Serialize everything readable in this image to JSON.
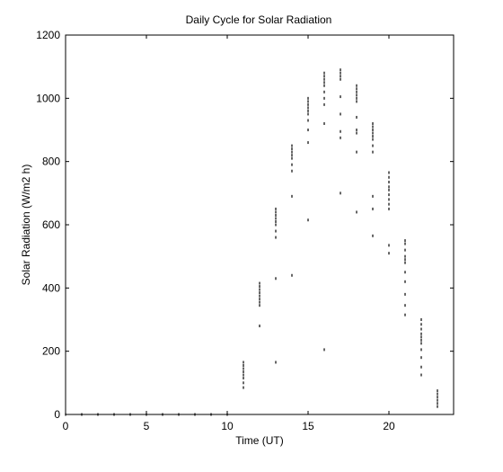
{
  "chart_data": {
    "type": "scatter",
    "title": "Daily Cycle for Solar Radiation",
    "xlabel": "Time (UT)",
    "ylabel": "Solar Radiation (W/m2 h)",
    "xlim": [
      0,
      24
    ],
    "ylim": [
      0,
      1200
    ],
    "xticks": [
      0,
      5,
      10,
      15,
      20
    ],
    "yticks": [
      0,
      200,
      400,
      600,
      800,
      1000,
      1200
    ],
    "grid": false,
    "legend": "none",
    "marker_color": "#000000",
    "series": [
      {
        "points": [
          [
            0,
            0
          ],
          [
            1,
            0
          ],
          [
            2,
            0
          ],
          [
            3,
            0
          ],
          [
            4,
            0
          ],
          [
            5,
            0
          ],
          [
            6,
            0
          ],
          [
            7,
            0
          ],
          [
            8,
            0
          ],
          [
            9,
            0
          ],
          [
            10,
            0
          ],
          [
            11,
            85
          ],
          [
            11,
            100
          ],
          [
            11,
            115
          ],
          [
            11,
            125
          ],
          [
            11,
            135
          ],
          [
            11,
            145
          ],
          [
            11,
            155
          ],
          [
            11,
            165
          ],
          [
            12,
            280
          ],
          [
            12,
            345
          ],
          [
            12,
            355
          ],
          [
            12,
            365
          ],
          [
            12,
            375
          ],
          [
            12,
            385
          ],
          [
            12,
            395
          ],
          [
            12,
            405
          ],
          [
            12,
            415
          ],
          [
            13,
            165
          ],
          [
            13,
            430
          ],
          [
            13,
            560
          ],
          [
            13,
            580
          ],
          [
            13,
            600
          ],
          [
            13,
            610
          ],
          [
            13,
            620
          ],
          [
            13,
            630
          ],
          [
            13,
            640
          ],
          [
            13,
            650
          ],
          [
            14,
            440
          ],
          [
            14,
            690
          ],
          [
            14,
            770
          ],
          [
            14,
            790
          ],
          [
            14,
            810
          ],
          [
            14,
            820
          ],
          [
            14,
            830
          ],
          [
            14,
            840
          ],
          [
            14,
            850
          ],
          [
            15,
            615
          ],
          [
            15,
            860
          ],
          [
            15,
            900
          ],
          [
            15,
            930
          ],
          [
            15,
            950
          ],
          [
            15,
            960
          ],
          [
            15,
            970
          ],
          [
            15,
            980
          ],
          [
            15,
            990
          ],
          [
            15,
            1000
          ],
          [
            16,
            205
          ],
          [
            16,
            920
          ],
          [
            16,
            980
          ],
          [
            16,
            1000
          ],
          [
            16,
            1020
          ],
          [
            16,
            1040
          ],
          [
            16,
            1050
          ],
          [
            16,
            1060
          ],
          [
            16,
            1070
          ],
          [
            16,
            1080
          ],
          [
            17,
            700
          ],
          [
            17,
            875
          ],
          [
            17,
            895
          ],
          [
            17,
            950
          ],
          [
            17,
            1005
          ],
          [
            17,
            1060
          ],
          [
            17,
            1070
          ],
          [
            17,
            1080
          ],
          [
            17,
            1090
          ],
          [
            18,
            640
          ],
          [
            18,
            830
          ],
          [
            18,
            890
          ],
          [
            18,
            900
          ],
          [
            18,
            940
          ],
          [
            18,
            990
          ],
          [
            18,
            1000
          ],
          [
            18,
            1010
          ],
          [
            18,
            1020
          ],
          [
            18,
            1030
          ],
          [
            18,
            1040
          ],
          [
            19,
            565
          ],
          [
            19,
            650
          ],
          [
            19,
            690
          ],
          [
            19,
            830
          ],
          [
            19,
            850
          ],
          [
            19,
            870
          ],
          [
            19,
            880
          ],
          [
            19,
            890
          ],
          [
            19,
            900
          ],
          [
            19,
            910
          ],
          [
            19,
            920
          ],
          [
            20,
            510
          ],
          [
            20,
            535
          ],
          [
            20,
            650
          ],
          [
            20,
            665
          ],
          [
            20,
            680
          ],
          [
            20,
            695
          ],
          [
            20,
            710
          ],
          [
            20,
            720
          ],
          [
            20,
            735
          ],
          [
            20,
            750
          ],
          [
            20,
            765
          ],
          [
            21,
            315
          ],
          [
            21,
            345
          ],
          [
            21,
            380
          ],
          [
            21,
            420
          ],
          [
            21,
            450
          ],
          [
            21,
            480
          ],
          [
            21,
            490
          ],
          [
            21,
            500
          ],
          [
            21,
            520
          ],
          [
            21,
            540
          ],
          [
            21,
            550
          ],
          [
            22,
            125
          ],
          [
            22,
            150
          ],
          [
            22,
            180
          ],
          [
            22,
            205
          ],
          [
            22,
            225
          ],
          [
            22,
            235
          ],
          [
            22,
            245
          ],
          [
            22,
            255
          ],
          [
            22,
            270
          ],
          [
            22,
            285
          ],
          [
            22,
            300
          ],
          [
            23,
            25
          ],
          [
            23,
            35
          ],
          [
            23,
            45
          ],
          [
            23,
            55
          ],
          [
            23,
            65
          ],
          [
            23,
            75
          ]
        ]
      }
    ]
  }
}
